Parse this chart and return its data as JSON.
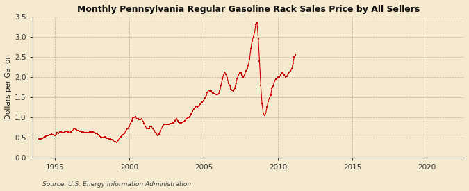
{
  "title": "Monthly Pennsylvania Regular Gasoline Rack Sales Price by All Sellers",
  "ylabel": "Dollars per Gallon",
  "source": "Source: U.S. Energy Information Administration",
  "background_color": "#f5ead0",
  "plot_bg_color": "#f5ead0",
  "line_color": "#cc0000",
  "ylim": [
    0.0,
    3.5
  ],
  "yticks": [
    0.0,
    0.5,
    1.0,
    1.5,
    2.0,
    2.5,
    3.0,
    3.5
  ],
  "xlim_start": 1993.5,
  "xlim_end": 2022.5,
  "xticks": [
    1995,
    2000,
    2005,
    2010,
    2015,
    2020
  ],
  "data": [
    [
      1993.917,
      0.47
    ],
    [
      1994.0,
      0.46
    ],
    [
      1994.083,
      0.46
    ],
    [
      1994.167,
      0.48
    ],
    [
      1994.25,
      0.5
    ],
    [
      1994.333,
      0.52
    ],
    [
      1994.417,
      0.54
    ],
    [
      1994.5,
      0.55
    ],
    [
      1994.583,
      0.55
    ],
    [
      1994.667,
      0.57
    ],
    [
      1994.75,
      0.58
    ],
    [
      1994.833,
      0.57
    ],
    [
      1994.917,
      0.57
    ],
    [
      1995.0,
      0.55
    ],
    [
      1995.083,
      0.58
    ],
    [
      1995.167,
      0.62
    ],
    [
      1995.25,
      0.61
    ],
    [
      1995.333,
      0.63
    ],
    [
      1995.417,
      0.63
    ],
    [
      1995.5,
      0.62
    ],
    [
      1995.583,
      0.62
    ],
    [
      1995.667,
      0.63
    ],
    [
      1995.75,
      0.65
    ],
    [
      1995.833,
      0.64
    ],
    [
      1995.917,
      0.64
    ],
    [
      1996.0,
      0.62
    ],
    [
      1996.083,
      0.63
    ],
    [
      1996.167,
      0.67
    ],
    [
      1996.25,
      0.7
    ],
    [
      1996.333,
      0.72
    ],
    [
      1996.417,
      0.71
    ],
    [
      1996.5,
      0.68
    ],
    [
      1996.583,
      0.67
    ],
    [
      1996.667,
      0.66
    ],
    [
      1996.75,
      0.65
    ],
    [
      1996.833,
      0.63
    ],
    [
      1996.917,
      0.63
    ],
    [
      1997.0,
      0.62
    ],
    [
      1997.083,
      0.62
    ],
    [
      1997.167,
      0.62
    ],
    [
      1997.25,
      0.62
    ],
    [
      1997.333,
      0.64
    ],
    [
      1997.417,
      0.63
    ],
    [
      1997.5,
      0.63
    ],
    [
      1997.583,
      0.63
    ],
    [
      1997.667,
      0.62
    ],
    [
      1997.75,
      0.61
    ],
    [
      1997.833,
      0.59
    ],
    [
      1997.917,
      0.57
    ],
    [
      1998.0,
      0.54
    ],
    [
      1998.083,
      0.52
    ],
    [
      1998.167,
      0.5
    ],
    [
      1998.25,
      0.5
    ],
    [
      1998.333,
      0.52
    ],
    [
      1998.417,
      0.51
    ],
    [
      1998.5,
      0.49
    ],
    [
      1998.583,
      0.48
    ],
    [
      1998.667,
      0.47
    ],
    [
      1998.75,
      0.46
    ],
    [
      1998.833,
      0.44
    ],
    [
      1998.917,
      0.43
    ],
    [
      1999.0,
      0.4
    ],
    [
      1999.083,
      0.39
    ],
    [
      1999.167,
      0.38
    ],
    [
      1999.25,
      0.43
    ],
    [
      1999.333,
      0.48
    ],
    [
      1999.417,
      0.52
    ],
    [
      1999.5,
      0.54
    ],
    [
      1999.583,
      0.57
    ],
    [
      1999.667,
      0.6
    ],
    [
      1999.75,
      0.65
    ],
    [
      1999.833,
      0.7
    ],
    [
      1999.917,
      0.73
    ],
    [
      2000.0,
      0.78
    ],
    [
      2000.083,
      0.85
    ],
    [
      2000.167,
      0.92
    ],
    [
      2000.25,
      0.98
    ],
    [
      2000.333,
      1.0
    ],
    [
      2000.417,
      1.01
    ],
    [
      2000.5,
      0.97
    ],
    [
      2000.583,
      0.96
    ],
    [
      2000.667,
      0.95
    ],
    [
      2000.75,
      0.95
    ],
    [
      2000.833,
      0.96
    ],
    [
      2000.917,
      0.9
    ],
    [
      2001.0,
      0.85
    ],
    [
      2001.083,
      0.78
    ],
    [
      2001.167,
      0.72
    ],
    [
      2001.25,
      0.72
    ],
    [
      2001.333,
      0.73
    ],
    [
      2001.417,
      0.78
    ],
    [
      2001.5,
      0.77
    ],
    [
      2001.583,
      0.72
    ],
    [
      2001.667,
      0.67
    ],
    [
      2001.75,
      0.62
    ],
    [
      2001.833,
      0.58
    ],
    [
      2001.917,
      0.56
    ],
    [
      2002.0,
      0.58
    ],
    [
      2002.083,
      0.67
    ],
    [
      2002.167,
      0.73
    ],
    [
      2002.25,
      0.77
    ],
    [
      2002.333,
      0.82
    ],
    [
      2002.417,
      0.83
    ],
    [
      2002.5,
      0.82
    ],
    [
      2002.583,
      0.82
    ],
    [
      2002.667,
      0.82
    ],
    [
      2002.75,
      0.84
    ],
    [
      2002.833,
      0.85
    ],
    [
      2002.917,
      0.86
    ],
    [
      2003.0,
      0.87
    ],
    [
      2003.083,
      0.92
    ],
    [
      2003.167,
      0.97
    ],
    [
      2003.25,
      0.92
    ],
    [
      2003.333,
      0.88
    ],
    [
      2003.417,
      0.87
    ],
    [
      2003.5,
      0.87
    ],
    [
      2003.583,
      0.88
    ],
    [
      2003.667,
      0.9
    ],
    [
      2003.75,
      0.92
    ],
    [
      2003.833,
      0.96
    ],
    [
      2003.917,
      0.98
    ],
    [
      2004.0,
      1.0
    ],
    [
      2004.083,
      1.02
    ],
    [
      2004.167,
      1.08
    ],
    [
      2004.25,
      1.15
    ],
    [
      2004.333,
      1.2
    ],
    [
      2004.417,
      1.25
    ],
    [
      2004.5,
      1.27
    ],
    [
      2004.583,
      1.26
    ],
    [
      2004.667,
      1.28
    ],
    [
      2004.75,
      1.32
    ],
    [
      2004.833,
      1.36
    ],
    [
      2004.917,
      1.38
    ],
    [
      2005.0,
      1.42
    ],
    [
      2005.083,
      1.48
    ],
    [
      2005.167,
      1.55
    ],
    [
      2005.25,
      1.62
    ],
    [
      2005.333,
      1.68
    ],
    [
      2005.417,
      1.65
    ],
    [
      2005.5,
      1.65
    ],
    [
      2005.583,
      1.6
    ],
    [
      2005.667,
      1.6
    ],
    [
      2005.75,
      1.58
    ],
    [
      2005.833,
      1.57
    ],
    [
      2005.917,
      1.57
    ],
    [
      2006.0,
      1.58
    ],
    [
      2006.083,
      1.65
    ],
    [
      2006.167,
      1.8
    ],
    [
      2006.25,
      1.95
    ],
    [
      2006.333,
      2.05
    ],
    [
      2006.417,
      2.12
    ],
    [
      2006.5,
      2.07
    ],
    [
      2006.583,
      1.98
    ],
    [
      2006.667,
      1.85
    ],
    [
      2006.75,
      1.8
    ],
    [
      2006.833,
      1.7
    ],
    [
      2006.917,
      1.68
    ],
    [
      2007.0,
      1.65
    ],
    [
      2007.083,
      1.72
    ],
    [
      2007.167,
      1.85
    ],
    [
      2007.25,
      1.96
    ],
    [
      2007.333,
      2.05
    ],
    [
      2007.417,
      2.1
    ],
    [
      2007.5,
      2.1
    ],
    [
      2007.583,
      2.05
    ],
    [
      2007.667,
      2.0
    ],
    [
      2007.75,
      2.05
    ],
    [
      2007.833,
      2.15
    ],
    [
      2007.917,
      2.2
    ],
    [
      2008.0,
      2.3
    ],
    [
      2008.083,
      2.45
    ],
    [
      2008.167,
      2.7
    ],
    [
      2008.25,
      2.9
    ],
    [
      2008.333,
      3.0
    ],
    [
      2008.417,
      3.1
    ],
    [
      2008.5,
      3.3
    ],
    [
      2008.583,
      3.35
    ],
    [
      2008.667,
      2.95
    ],
    [
      2008.75,
      2.4
    ],
    [
      2008.833,
      1.8
    ],
    [
      2008.917,
      1.35
    ],
    [
      2009.0,
      1.1
    ],
    [
      2009.083,
      1.05
    ],
    [
      2009.167,
      1.1
    ],
    [
      2009.25,
      1.25
    ],
    [
      2009.333,
      1.4
    ],
    [
      2009.417,
      1.48
    ],
    [
      2009.5,
      1.55
    ],
    [
      2009.583,
      1.72
    ],
    [
      2009.667,
      1.78
    ],
    [
      2009.75,
      1.9
    ],
    [
      2009.833,
      1.95
    ],
    [
      2009.917,
      1.95
    ],
    [
      2010.0,
      2.0
    ],
    [
      2010.083,
      2.0
    ],
    [
      2010.167,
      2.05
    ],
    [
      2010.25,
      2.1
    ],
    [
      2010.333,
      2.1
    ],
    [
      2010.417,
      2.05
    ],
    [
      2010.5,
      2.0
    ],
    [
      2010.583,
      2.02
    ],
    [
      2010.667,
      2.08
    ],
    [
      2010.75,
      2.12
    ],
    [
      2010.833,
      2.15
    ],
    [
      2010.917,
      2.2
    ],
    [
      2011.0,
      2.35
    ],
    [
      2011.083,
      2.5
    ],
    [
      2011.167,
      2.55
    ]
  ]
}
